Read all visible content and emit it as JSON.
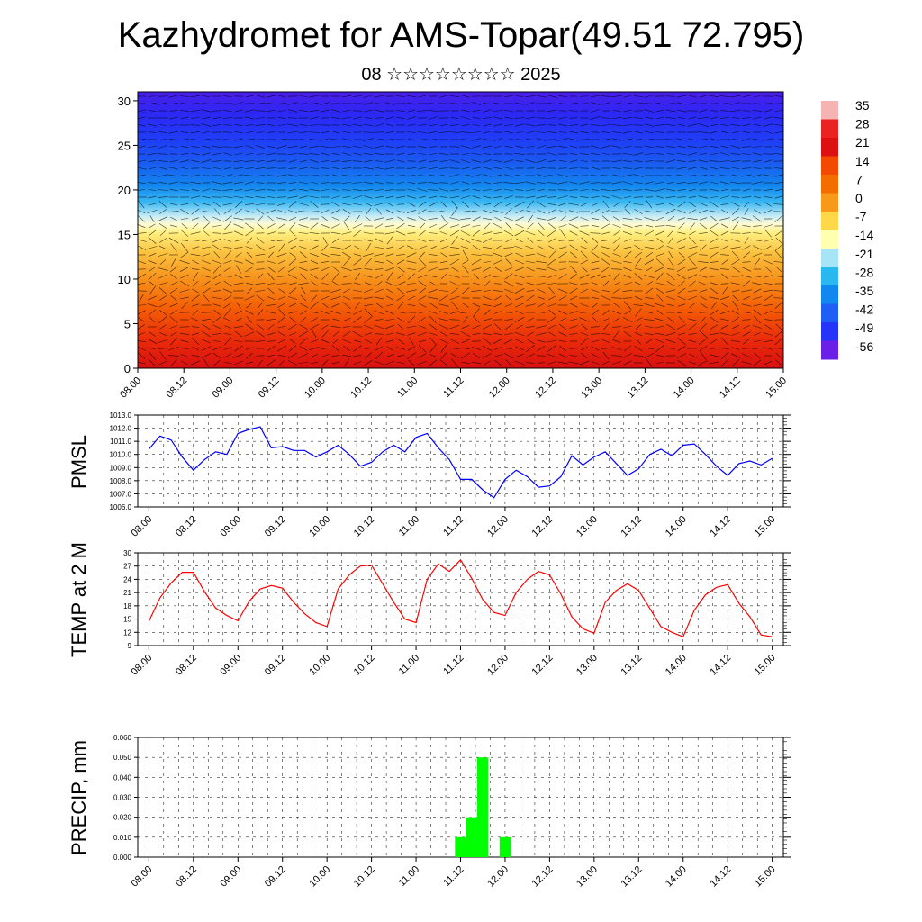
{
  "header": {
    "title": "Kazhydromet for AMS-Topar(49.51 72.795)",
    "subtitle": "08 ☆☆☆☆☆☆☆☆ 2025"
  },
  "colors": {
    "pmsl_line": "#0000ff",
    "temp_line": "#ff0000",
    "precip_bar": "#00ff00",
    "grid": "#000000"
  },
  "chart_data": [
    {
      "type": "heatmap",
      "title": "",
      "xlabel": "",
      "ylabel": "",
      "x_ticks": [
        "08.00",
        "08.12",
        "09.00",
        "09.12",
        "10.00",
        "10.12",
        "11.00",
        "11.12",
        "12.00",
        "12.12",
        "13.00",
        "13.12",
        "14.00",
        "14.12",
        "15.00"
      ],
      "y_ticks": [
        "0",
        "5",
        "10",
        "15",
        "20",
        "25",
        "30"
      ],
      "ylim": [
        0,
        31
      ],
      "colorbar": {
        "labels": [
          "35",
          "28",
          "21",
          "14",
          "7",
          "0",
          "-7",
          "-14",
          "-21",
          "-28",
          "-35",
          "-42",
          "-49",
          "-56"
        ],
        "colors": [
          "#f5b3b3",
          "#ea2222",
          "#dc1010",
          "#f24a00",
          "#f46d00",
          "#f9991a",
          "#ffd84a",
          "#ffffb0",
          "#a8e4f8",
          "#2ab8f0",
          "#1088f0",
          "#1f5ff4",
          "#2534f8",
          "#6a20e6"
        ]
      },
      "overlay": "wind barbs"
    },
    {
      "type": "line",
      "ylabel": "PMSL",
      "x_ticks": [
        "08.00",
        "08.12",
        "09.00",
        "09.12",
        "10.00",
        "10.12",
        "11.00",
        "11.12",
        "12.00",
        "12.12",
        "13.00",
        "13.12",
        "14.00",
        "14.12",
        "15.00"
      ],
      "y_ticks": [
        "1013.0",
        "1012.0",
        "1011.0",
        "1010.0",
        "1009.0",
        "1008.0",
        "1007.0",
        "1006.0"
      ],
      "ylim": [
        1006.0,
        1013.0
      ],
      "grid": true,
      "values": [
        1010.4,
        1011.4,
        1011.1,
        1009.8,
        1008.8,
        1009.6,
        1010.2,
        1010.0,
        1011.6,
        1011.9,
        1012.1,
        1010.5,
        1010.6,
        1010.3,
        1010.3,
        1009.8,
        1010.2,
        1010.7,
        1010.0,
        1009.1,
        1009.4,
        1010.2,
        1010.7,
        1010.2,
        1011.3,
        1011.6,
        1010.5,
        1009.6,
        1008.1,
        1008.1,
        1007.3,
        1006.7,
        1008.1,
        1008.8,
        1008.3,
        1007.5,
        1007.6,
        1008.3,
        1009.9,
        1009.2,
        1009.8,
        1010.2,
        1009.3,
        1008.4,
        1008.9,
        1010.0,
        1010.4,
        1009.9,
        1010.7,
        1010.8,
        1010.0,
        1009.1,
        1008.4,
        1009.3,
        1009.5,
        1009.2,
        1009.7
      ]
    },
    {
      "type": "line",
      "ylabel": "TEMP at 2 M",
      "x_ticks": [
        "08.00",
        "08.12",
        "09.00",
        "09.12",
        "10.00",
        "10.12",
        "11.00",
        "11.12",
        "12.00",
        "12.12",
        "13.00",
        "13.12",
        "14.00",
        "14.12",
        "15.00"
      ],
      "y_ticks": [
        "30",
        "27",
        "24",
        "21",
        "18",
        "15",
        "12",
        "9"
      ],
      "ylim": [
        9,
        30
      ],
      "grid": true,
      "values": [
        14.5,
        19.8,
        23.2,
        25.6,
        25.6,
        21.2,
        17.5,
        15.8,
        14.6,
        19.0,
        21.8,
        22.6,
        22.0,
        18.8,
        16.2,
        14.2,
        13.3,
        21.8,
        25.0,
        27.0,
        27.2,
        23.0,
        18.8,
        15.0,
        14.2,
        24.0,
        27.5,
        25.8,
        28.4,
        24.2,
        19.4,
        16.5,
        15.8,
        21.0,
        24.0,
        25.8,
        25.0,
        20.7,
        15.5,
        12.8,
        11.8,
        18.8,
        21.5,
        23.0,
        21.5,
        17.4,
        13.3,
        12.0,
        11.0,
        17.0,
        20.5,
        22.2,
        22.8,
        18.6,
        15.5,
        11.4,
        11.0
      ]
    },
    {
      "type": "bar",
      "ylabel": "PRECIP, mm",
      "x_ticks": [
        "08.00",
        "08.12",
        "09.00",
        "09.12",
        "10.00",
        "10.12",
        "11.00",
        "11.12",
        "12.00",
        "12.12",
        "13.00",
        "13.12",
        "14.00",
        "14.12",
        "15.00"
      ],
      "y_ticks": [
        "0.060",
        "0.050",
        "0.040",
        "0.030",
        "0.020",
        "0.010",
        "0.000"
      ],
      "ylim": [
        0.0,
        0.06
      ],
      "grid": true,
      "bars": [
        {
          "x": 28,
          "value": 0.01
        },
        {
          "x": 29,
          "value": 0.02
        },
        {
          "x": 30,
          "value": 0.05
        },
        {
          "x": 32,
          "value": 0.01
        }
      ]
    }
  ]
}
